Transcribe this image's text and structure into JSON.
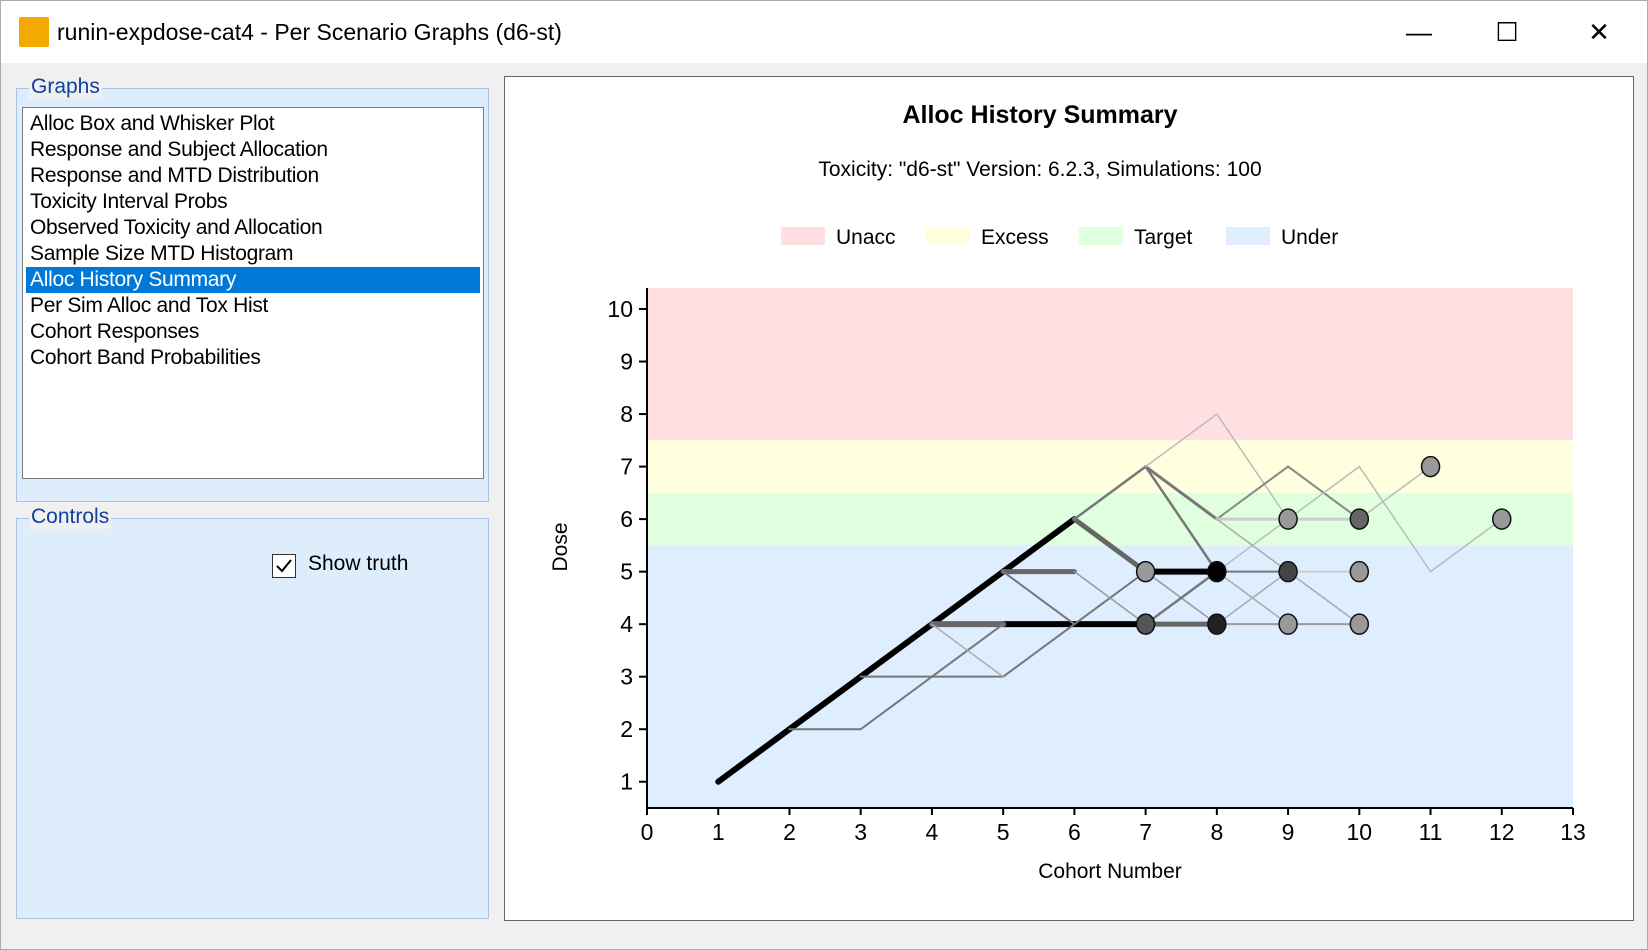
{
  "window": {
    "title": "runin-expdose-cat4 - Per Scenario Graphs (d6-st)",
    "minimize": "—",
    "maximize": "☐",
    "close": "✕"
  },
  "graphs": {
    "label": "Graphs",
    "items": [
      "Alloc Box and Whisker Plot",
      "Response and Subject Allocation",
      "Response and MTD Distribution",
      "Toxicity Interval Probs",
      "Observed Toxicity and Allocation",
      "Sample Size MTD Histogram",
      "Alloc History Summary",
      "Per Sim Alloc and Tox Hist",
      "Cohort Responses",
      "Cohort Band Probabilities"
    ],
    "selected": 6
  },
  "controls": {
    "label": "Controls",
    "show_truth_label": "Show truth",
    "show_truth_checked": true
  },
  "chart_data": {
    "type": "line",
    "title": "Alloc History Summary",
    "subtitle": "Toxicity: \"d6-st\" Version: 6.2.3, Simulations: 100",
    "xlabel": "Cohort Number",
    "ylabel": "Dose",
    "xlim": [
      0,
      13
    ],
    "ylim": [
      0.5,
      10.4
    ],
    "xticks": [
      "0",
      "1",
      "2",
      "3",
      "4",
      "5",
      "6",
      "7",
      "8",
      "9",
      "10",
      "11",
      "12",
      "13"
    ],
    "yticks": [
      "1",
      "2",
      "3",
      "4",
      "5",
      "6",
      "7",
      "8",
      "9",
      "10"
    ],
    "legend": [
      {
        "name": "Unacc",
        "color": "#ffdfe1"
      },
      {
        "name": "Excess",
        "color": "#ffffdf"
      },
      {
        "name": "Target",
        "color": "#dfffdf"
      },
      {
        "name": "Under",
        "color": "#dfeefe"
      }
    ],
    "legend_placement": "top",
    "bands": [
      {
        "name": "Unacc",
        "from": 7.5,
        "to": 10.4
      },
      {
        "name": "Excess",
        "from": 6.5,
        "to": 7.5
      },
      {
        "name": "Target",
        "from": 5.5,
        "to": 6.5
      },
      {
        "name": "Under",
        "from": 0.5,
        "to": 5.5
      }
    ],
    "segments": [
      [
        1,
        1,
        2,
        2,
        "#000",
        6
      ],
      [
        2,
        2,
        3,
        3,
        "#000",
        6
      ],
      [
        3,
        3,
        4,
        4,
        "#000",
        6
      ],
      [
        4,
        4,
        5,
        5,
        "#000",
        6
      ],
      [
        5,
        5,
        6,
        6,
        "#000",
        6
      ],
      [
        5,
        4,
        6,
        4,
        "#000",
        6
      ],
      [
        6,
        4,
        7,
        4,
        "#000",
        6
      ],
      [
        7,
        5,
        8,
        5,
        "#000",
        6
      ],
      [
        4,
        4,
        5,
        4,
        "#666",
        6
      ],
      [
        5,
        5,
        6,
        5,
        "#666",
        5
      ],
      [
        6,
        6,
        7,
        5,
        "#666",
        5
      ],
      [
        7,
        4,
        8,
        4,
        "#666",
        5
      ],
      [
        2,
        2,
        3,
        2,
        "#777",
        2
      ],
      [
        3,
        2,
        4,
        3,
        "#777",
        2
      ],
      [
        4,
        3,
        5,
        4,
        "#777",
        2
      ],
      [
        3,
        3,
        4,
        3,
        "#777",
        2
      ],
      [
        4,
        3,
        5,
        3,
        "#777",
        2
      ],
      [
        5,
        3,
        6,
        4,
        "#777",
        2
      ],
      [
        6,
        4,
        7,
        5,
        "#777",
        2
      ],
      [
        5,
        5,
        6,
        4,
        "#777",
        2
      ],
      [
        4,
        4,
        5,
        3,
        "#aaa",
        1.5
      ],
      [
        6,
        6,
        7,
        7,
        "#777",
        2.5
      ],
      [
        7,
        7,
        8,
        6,
        "#777",
        3
      ],
      [
        7,
        7,
        8,
        5,
        "#777",
        2.5
      ],
      [
        7,
        7,
        8,
        8,
        "#bbb",
        1.5
      ],
      [
        8,
        8,
        9,
        6,
        "#bbb",
        1.5
      ],
      [
        8,
        6,
        9,
        7,
        "#888",
        2
      ],
      [
        9,
        7,
        10,
        6,
        "#888",
        2
      ],
      [
        8,
        6,
        9,
        6,
        "#ccc",
        3
      ],
      [
        9,
        6,
        10,
        6,
        "#ccc",
        3
      ],
      [
        10,
        6,
        11,
        7,
        "#bbb",
        1.5
      ],
      [
        9,
        6,
        10,
        7,
        "#bbb",
        1.5
      ],
      [
        10,
        7,
        11,
        5,
        "#bbb",
        1.5
      ],
      [
        11,
        5,
        12,
        6,
        "#bbb",
        1.5
      ],
      [
        8,
        5,
        9,
        6,
        "#bbb",
        1.5
      ],
      [
        6,
        5,
        7,
        4,
        "#999",
        1.5
      ],
      [
        7,
        5,
        8,
        4,
        "#999",
        1.5
      ],
      [
        8,
        4,
        9,
        5,
        "#aaa",
        1.5
      ],
      [
        8,
        5,
        9,
        4,
        "#aaa",
        1.5
      ],
      [
        8,
        6,
        9,
        5,
        "#aaa",
        1.5
      ],
      [
        9,
        5,
        10,
        4,
        "#aaa",
        1.5
      ],
      [
        7,
        4,
        8,
        5,
        "#777",
        2.5
      ],
      [
        8,
        5,
        9,
        5,
        "#777",
        2
      ],
      [
        9,
        5,
        10,
        5,
        "#ccc",
        2
      ],
      [
        8,
        4,
        9,
        4,
        "#999",
        2
      ],
      [
        9,
        4,
        10,
        4,
        "#999",
        2
      ]
    ],
    "points": [
      [
        7,
        5,
        "#999"
      ],
      [
        8,
        5,
        "#000"
      ],
      [
        9,
        5,
        "#444"
      ],
      [
        10,
        5,
        "#999"
      ],
      [
        7,
        4,
        "#555"
      ],
      [
        8,
        4,
        "#222"
      ],
      [
        9,
        4,
        "#999"
      ],
      [
        10,
        4,
        "#999"
      ],
      [
        9,
        6,
        "#999"
      ],
      [
        10,
        6,
        "#666"
      ],
      [
        11,
        7,
        "#999"
      ],
      [
        12,
        6,
        "#999"
      ]
    ]
  }
}
